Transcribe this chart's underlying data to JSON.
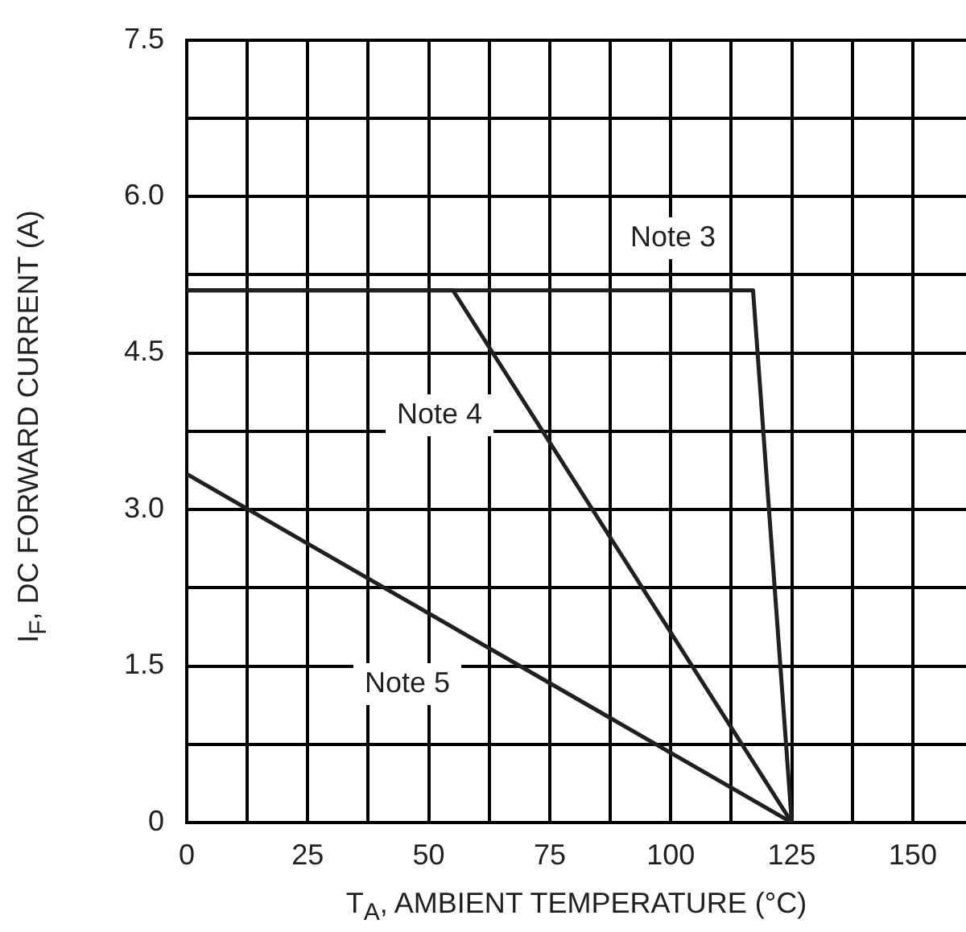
{
  "chart_data": {
    "type": "line",
    "xlabel": "T$_{A}$, AMBIENT TEMPERATURE (°C)",
    "ylabel": "I$_{F}$, DC FORWARD CURRENT (A)",
    "series": [
      {
        "color": "#231f20",
        "x": [
          0,
          117,
          125
        ],
        "values": [
          5.1,
          5.1,
          0
        ]
      },
      {
        "color": "#231f20",
        "x": [
          0,
          55,
          125
        ],
        "values": [
          5.1,
          5.1,
          0
        ]
      },
      {
        "color": "#231f20",
        "x": [
          0,
          125
        ],
        "values": [
          3.34,
          0
        ]
      }
    ],
    "xlim": [
      0,
      161
    ],
    "xticks": [
      0,
      {
        "value": 12.5,
        "label": null
      },
      25,
      {
        "value": 37.5,
        "label": null
      },
      50,
      {
        "value": 62.5,
        "label": null
      },
      75,
      {
        "value": 87.5,
        "label": null
      },
      100,
      {
        "value": 112.5,
        "label": null
      },
      125,
      {
        "value": 137.5,
        "label": null
      },
      150
    ],
    "ylim": [
      0,
      7.5
    ],
    "yticks": [
      0,
      {
        "value": 0.75,
        "label": null
      },
      {
        "value": 1.5,
        "label": "1.5"
      },
      {
        "value": 2.25,
        "label": null
      },
      {
        "value": 3,
        "label": "3.0"
      },
      {
        "value": 3.75,
        "label": null
      },
      {
        "value": 4.5,
        "label": "4.5"
      },
      {
        "value": 5.25,
        "label": null
      },
      {
        "value": 6,
        "label": "6.0"
      },
      {
        "value": 6.75,
        "label": null
      },
      {
        "value": 7.5,
        "label": "7.5"
      }
    ],
    "annotations": [
      "Note 3",
      "Note 4",
      "Note 5"
    ],
    "grid": true,
    "legend": false,
    "marker": "none",
    "line_style": "solid"
  }
}
